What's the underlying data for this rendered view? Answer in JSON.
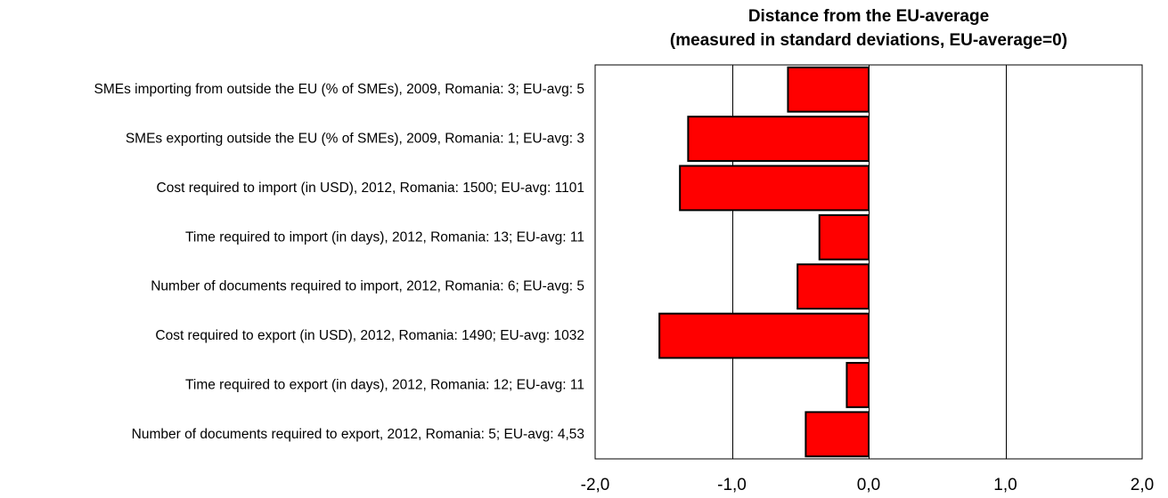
{
  "chart_data": {
    "type": "bar",
    "orientation": "horizontal",
    "title": "Distance from the EU-average",
    "subtitle": "(measured in standard deviations, EU-average=0)",
    "categories": [
      "SMEs importing from outside the EU (% of SMEs), 2009, Romania: 3; EU-avg: 5",
      "SMEs exporting outside the EU (% of SMEs), 2009, Romania: 1; EU-avg: 3",
      "Cost required to import (in USD), 2012, Romania: 1500; EU-avg: 1101",
      "Time required to import (in days), 2012, Romania: 13; EU-avg: 11",
      "Number of documents required to import, 2012, Romania: 6; EU-avg: 5",
      "Cost required to export (in USD), 2012, Romania: 1490; EU-avg: 1032",
      "Time required to export (in days), 2012, Romania: 12; EU-avg: 11",
      "Number of documents required to export, 2012, Romania: 5; EU-avg: 4,53"
    ],
    "values": [
      -0.59,
      -1.32,
      -1.38,
      -0.36,
      -0.52,
      -1.53,
      -0.16,
      -0.46
    ],
    "xlim": [
      -2.0,
      2.0
    ],
    "ticks": [
      -2.0,
      -1.0,
      0.0,
      1.0,
      2.0
    ],
    "tick_labels": [
      "-2,0",
      "-1,0",
      "0,0",
      "1,0",
      "2,0"
    ],
    "gridlines": [
      -1.0,
      0.0,
      1.0
    ],
    "grid": true,
    "legend": "none",
    "bar_color": "#ff0000",
    "bar_edge_color": "#000000"
  }
}
